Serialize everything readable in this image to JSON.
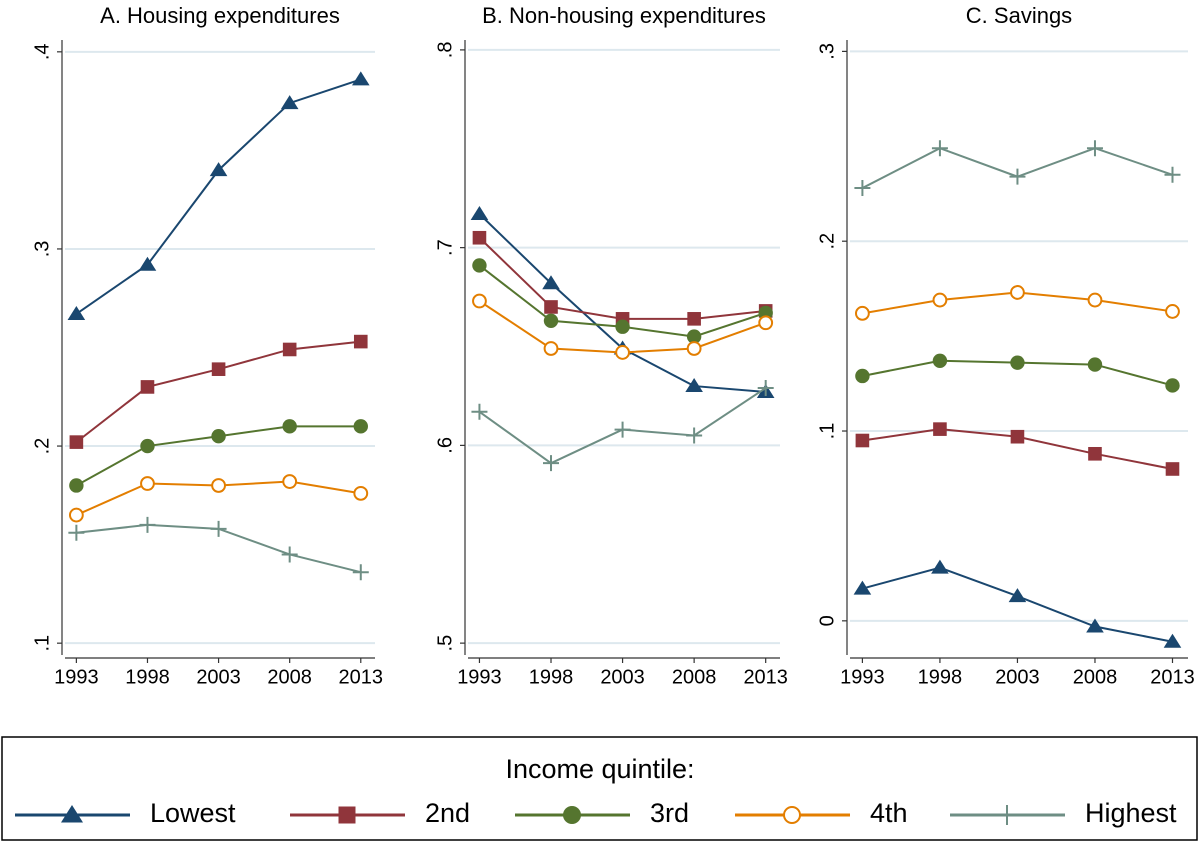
{
  "chart_data": [
    {
      "type": "line",
      "title": "A. Housing expenditures",
      "x": [
        1993,
        1998,
        2003,
        2008,
        2013
      ],
      "xlim": [
        1992.2,
        2014
      ],
      "xticks": [
        1993,
        1998,
        2003,
        2008,
        2013
      ],
      "ylim": [
        0.094,
        0.406
      ],
      "yticks": [
        {
          "value": 0.1,
          "label": ".1"
        },
        {
          "value": 0.2,
          "label": ".2"
        },
        {
          "value": 0.3,
          "label": ".3"
        },
        {
          "value": 0.4,
          "label": ".4"
        }
      ],
      "grid": true,
      "series": [
        {
          "values": [
            0.267,
            0.292,
            0.34,
            0.374,
            0.386
          ]
        },
        {
          "values": [
            0.202,
            0.23,
            0.239,
            0.249,
            0.253
          ]
        },
        {
          "values": [
            0.18,
            0.2,
            0.205,
            0.21,
            0.21
          ]
        },
        {
          "values": [
            0.165,
            0.181,
            0.18,
            0.182,
            0.176
          ]
        },
        {
          "values": [
            0.156,
            0.16,
            0.158,
            0.145,
            0.136
          ]
        }
      ]
    },
    {
      "type": "line",
      "title": "B. Non-housing expenditures",
      "x": [
        1993,
        1998,
        2003,
        2008,
        2013
      ],
      "xlim": [
        1992.2,
        2014
      ],
      "xticks": [
        1993,
        1998,
        2003,
        2008,
        2013
      ],
      "ylim": [
        0.494,
        0.805
      ],
      "yticks": [
        {
          "value": 0.5,
          "label": ".5"
        },
        {
          "value": 0.6,
          "label": ".6"
        },
        {
          "value": 0.7,
          "label": ".7"
        },
        {
          "value": 0.8,
          "label": ".8"
        }
      ],
      "grid": true,
      "series": [
        {
          "values": [
            0.717,
            0.682,
            0.649,
            0.63,
            0.627
          ]
        },
        {
          "values": [
            0.705,
            0.67,
            0.664,
            0.664,
            0.668
          ]
        },
        {
          "values": [
            0.691,
            0.663,
            0.66,
            0.655,
            0.667
          ]
        },
        {
          "values": [
            0.673,
            0.649,
            0.647,
            0.649,
            0.662
          ]
        },
        {
          "values": [
            0.617,
            0.591,
            0.608,
            0.605,
            0.629
          ]
        }
      ]
    },
    {
      "type": "line",
      "title": "C. Savings",
      "x": [
        1993,
        1998,
        2003,
        2008,
        2013
      ],
      "xlim": [
        1992.2,
        2014
      ],
      "xticks": [
        1993,
        1998,
        2003,
        2008,
        2013
      ],
      "ylim": [
        -0.018,
        0.306
      ],
      "yticks": [
        0,
        {
          "value": 0.1,
          "label": ".1"
        },
        {
          "value": 0.2,
          "label": ".2"
        },
        {
          "value": 0.3,
          "label": ".3"
        }
      ],
      "grid": true,
      "series": [
        {
          "values": [
            0.017,
            0.028,
            0.013,
            -0.003,
            -0.011
          ]
        },
        {
          "values": [
            0.095,
            0.101,
            0.097,
            0.088,
            0.08
          ]
        },
        {
          "values": [
            0.129,
            0.137,
            0.136,
            0.135,
            0.124
          ]
        },
        {
          "values": [
            0.162,
            0.169,
            0.173,
            0.169,
            0.163
          ]
        },
        {
          "values": [
            0.228,
            0.249,
            0.234,
            0.249,
            0.235
          ]
        }
      ]
    }
  ],
  "legend": {
    "title": "Income quintile:",
    "series": [
      {
        "name": "Lowest",
        "color": "#1a476f",
        "marker": "triangle"
      },
      {
        "name": "2nd",
        "color": "#90353b",
        "marker": "square"
      },
      {
        "name": "3rd",
        "color": "#55752f",
        "marker": "circle"
      },
      {
        "name": "4th",
        "color": "#e37e00",
        "marker": "hollow-circle"
      },
      {
        "name": "Highest",
        "color": "#6e8e84",
        "marker": "plus"
      }
    ]
  }
}
